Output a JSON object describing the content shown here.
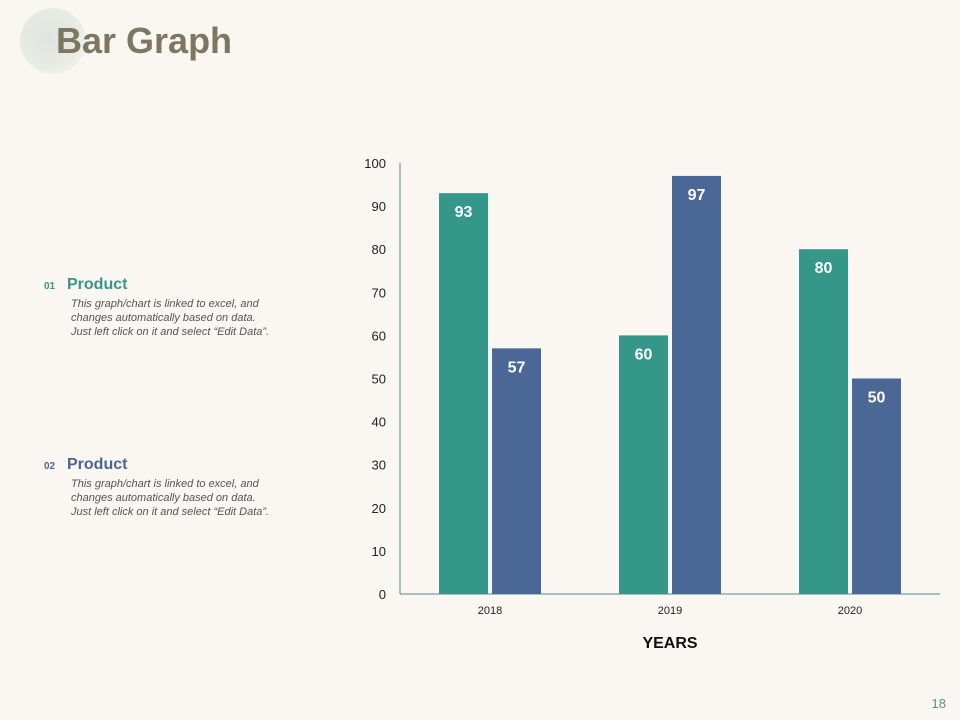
{
  "page": {
    "title": "Bar Graph",
    "page_number": "18"
  },
  "legend": [
    {
      "number": "01",
      "label": "Product",
      "description": "This graph/chart is linked to excel, and changes automatically based on data. Just left click on it and select “Edit Data”."
    },
    {
      "number": "02",
      "label": "Product",
      "description": "This graph/chart is linked to excel, and changes automatically based on data. Just left click on it and select “Edit Data”."
    }
  ],
  "colors": {
    "series1": "#34978a",
    "series2": "#4a6796",
    "title": "#7d7660",
    "axis": "#4a8f86"
  },
  "chart_data": {
    "type": "bar",
    "title": "",
    "categories": [
      "2018",
      "2019",
      "2020"
    ],
    "series": [
      {
        "name": "Product 01",
        "values": [
          93,
          60,
          80
        ]
      },
      {
        "name": "Product 02",
        "values": [
          57,
          97,
          50
        ]
      }
    ],
    "xlabel": "YEARS",
    "ylabel": "",
    "ylim": [
      0,
      100
    ],
    "yticks": [
      0,
      10,
      20,
      30,
      40,
      50,
      60,
      70,
      80,
      90,
      100
    ],
    "data_labels": true,
    "grid": false,
    "legend": "left"
  }
}
